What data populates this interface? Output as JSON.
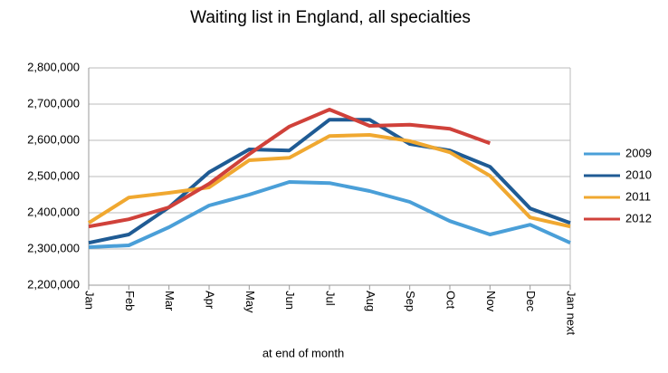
{
  "chart_data": {
    "type": "line",
    "title": "Waiting list in England, all specialties",
    "x_label": "at end of month",
    "categories": [
      "Jan",
      "Feb",
      "Mar",
      "Apr",
      "May",
      "Jun",
      "Jul",
      "Aug",
      "Sep",
      "Oct",
      "Nov",
      "Dec",
      "Jan next"
    ],
    "series": [
      {
        "name": "2009",
        "color": "#4a9fd8",
        "values": [
          2305000,
          2310000,
          2360000,
          2420000,
          2450000,
          2485000,
          2482000,
          2460000,
          2430000,
          2377000,
          2340000,
          2367000,
          2317000
        ]
      },
      {
        "name": "2010",
        "color": "#1f5b94",
        "values": [
          2317000,
          2340000,
          2415000,
          2512000,
          2575000,
          2572000,
          2657000,
          2657000,
          2590000,
          2572000,
          2527000,
          2412000,
          2372000
        ]
      },
      {
        "name": "2011",
        "color": "#f0a830",
        "values": [
          2372000,
          2442000,
          2455000,
          2470000,
          2545000,
          2552000,
          2612000,
          2615000,
          2598000,
          2567000,
          2502000,
          2387000,
          2362000
        ]
      },
      {
        "name": "2012",
        "color": "#d0413a",
        "values": [
          2362000,
          2382000,
          2415000,
          2480000,
          2562000,
          2638000,
          2685000,
          2640000,
          2643000,
          2632000,
          2592000,
          null,
          null
        ]
      }
    ],
    "ylim": [
      2200000,
      2800000
    ],
    "yticks": [
      {
        "value": 2200000,
        "label": "2,200,000"
      },
      {
        "value": 2300000,
        "label": "2,300,000"
      },
      {
        "value": 2400000,
        "label": "2,400,000"
      },
      {
        "value": 2500000,
        "label": "2,500,000"
      },
      {
        "value": 2600000,
        "label": "2,600,000"
      },
      {
        "value": 2700000,
        "label": "2,700,000"
      },
      {
        "value": 2800000,
        "label": "2,800,000"
      }
    ],
    "grid": true,
    "legend": "right"
  }
}
